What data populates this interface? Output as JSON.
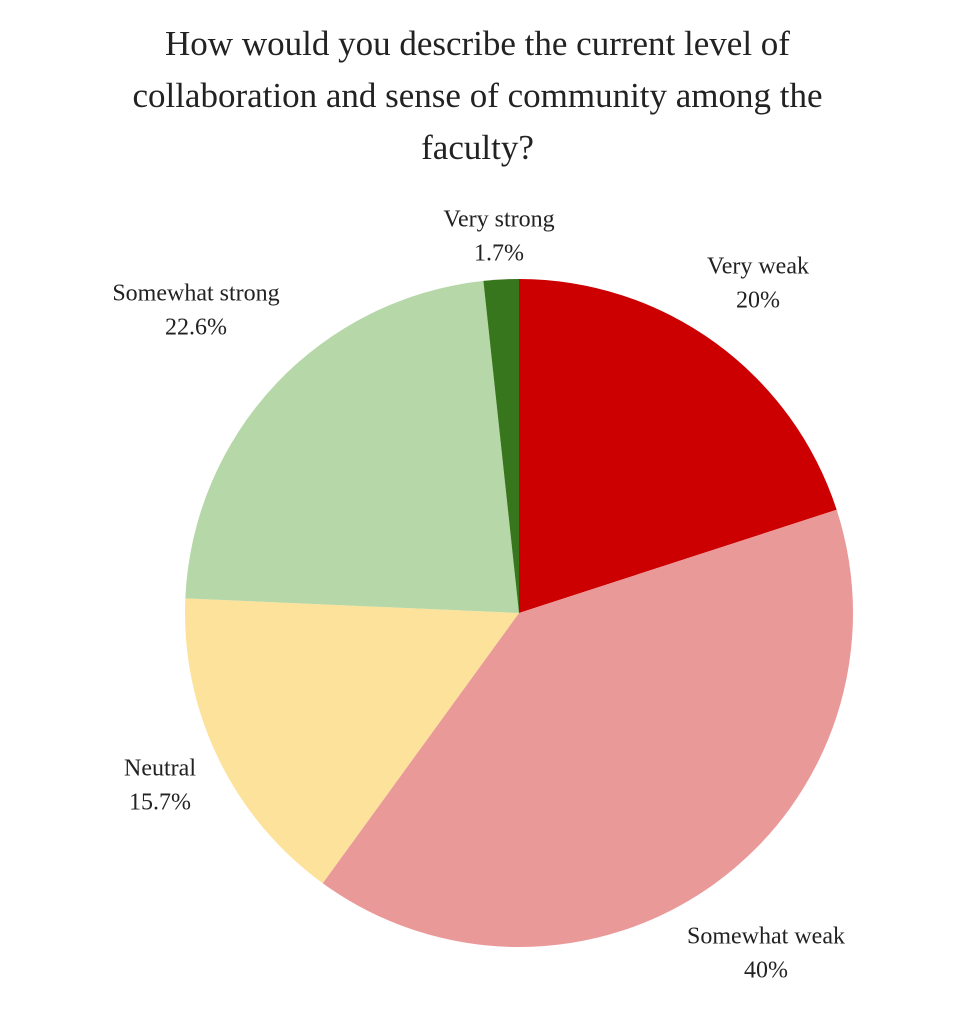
{
  "chart_data": {
    "type": "pie",
    "title": "How would you describe the current level of collaboration and sense of community among the faculty?",
    "categories": [
      "Very weak",
      "Somewhat weak",
      "Neutral",
      "Somewhat strong",
      "Very strong"
    ],
    "values": [
      20,
      40,
      15.7,
      22.6,
      1.7
    ],
    "value_labels": [
      "20%",
      "40%",
      "15.7%",
      "22.6%",
      "1.7%"
    ],
    "colors": [
      "#cc0000",
      "#ea9999",
      "#fce29a",
      "#b6d7a8",
      "#38761d"
    ]
  }
}
